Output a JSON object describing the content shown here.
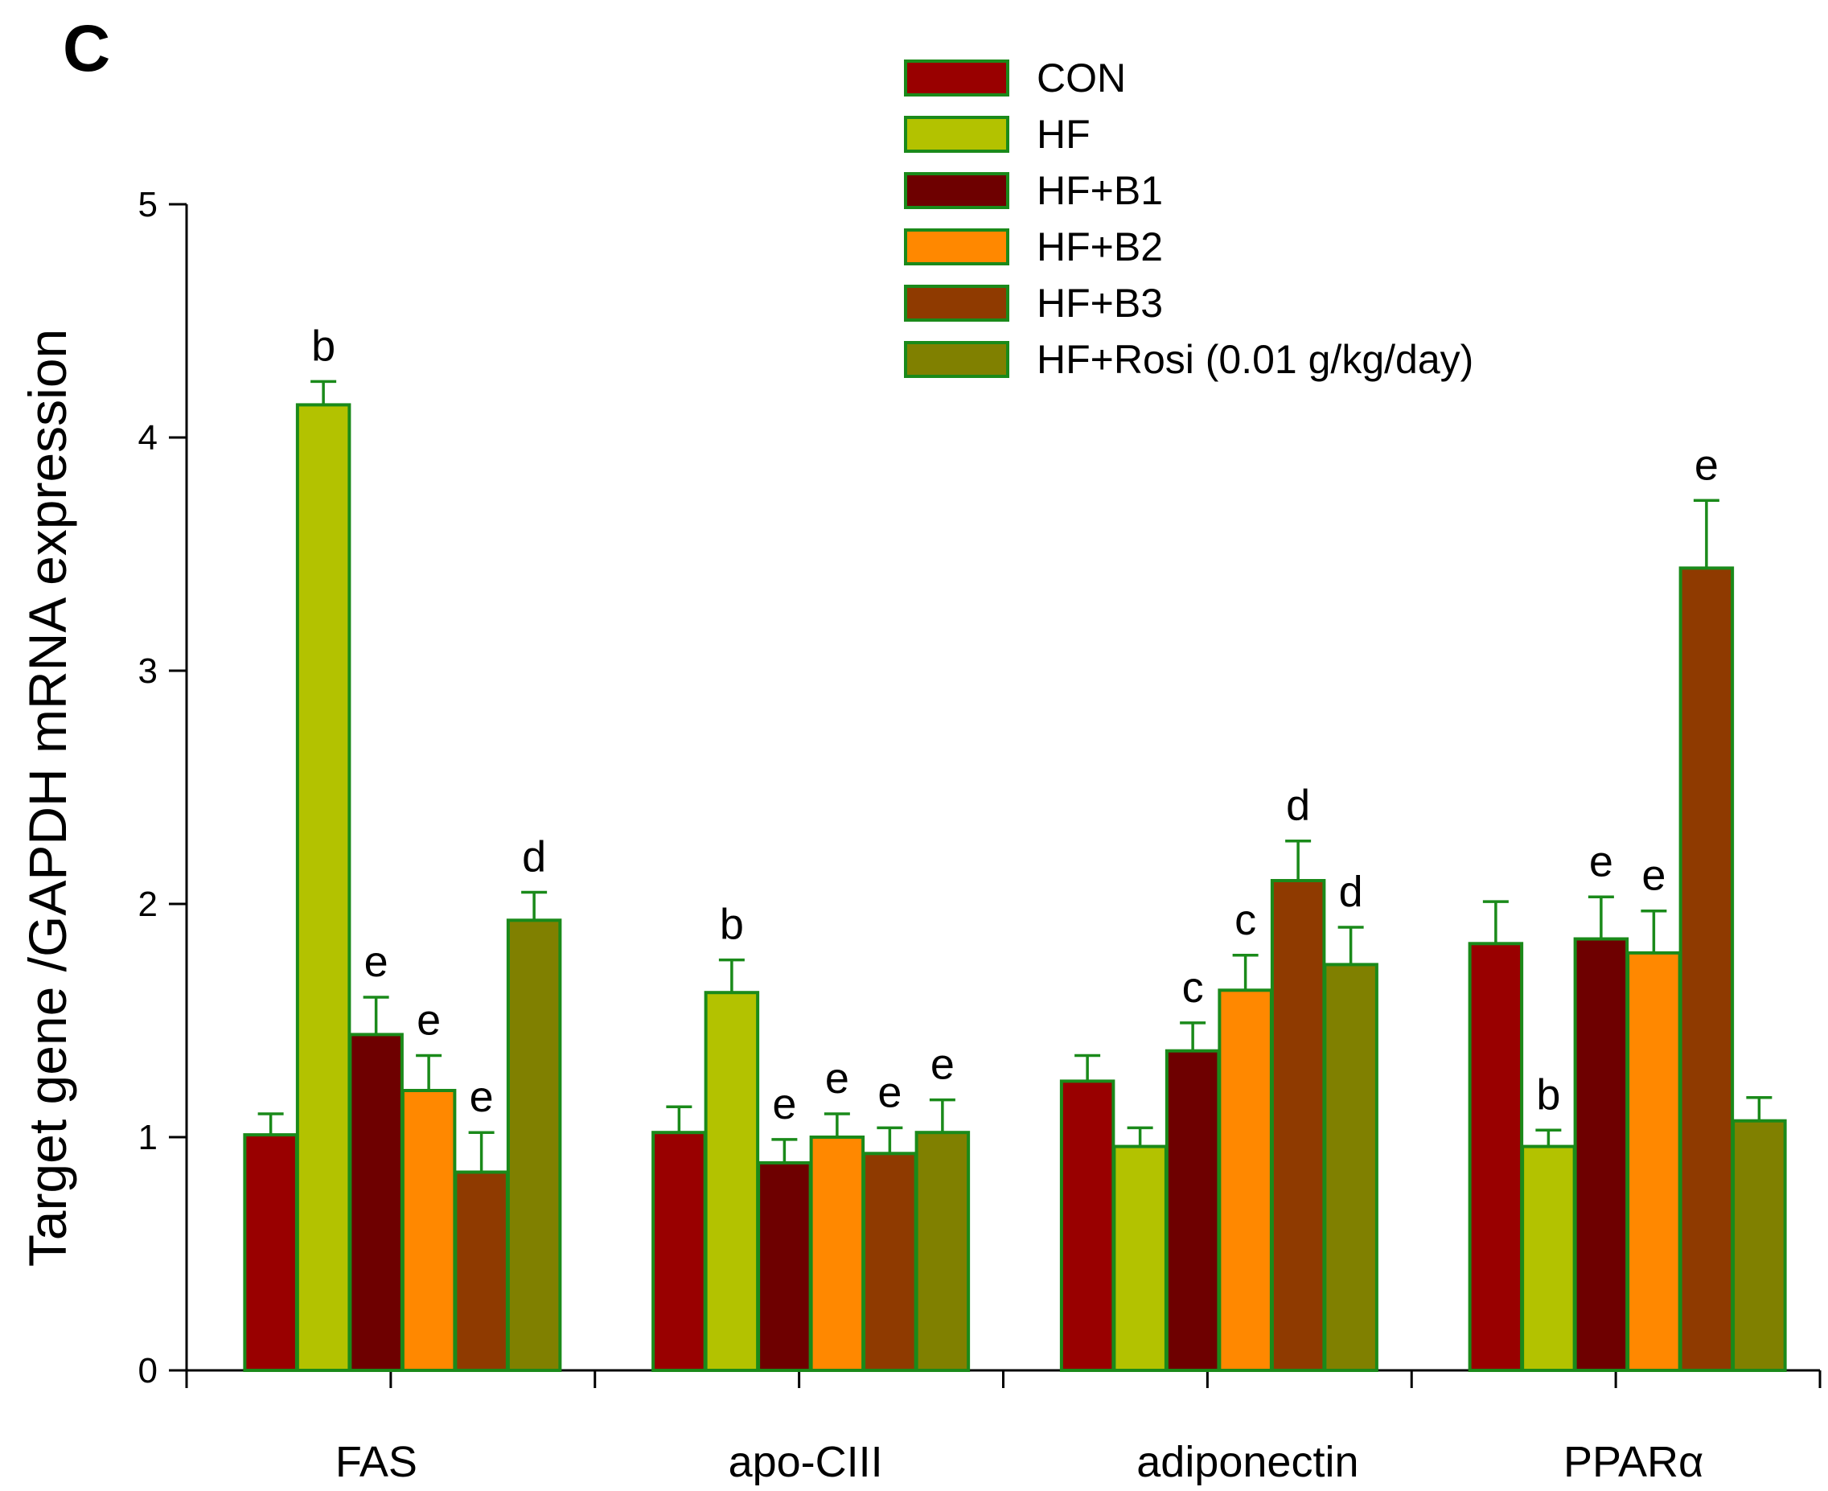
{
  "panel_label": "C",
  "chart_data": {
    "type": "bar",
    "title": "",
    "xlabel": "",
    "ylabel": "Target gene /GAPDH mRNA expression",
    "ylim": [
      0,
      5
    ],
    "yticks": [
      "0",
      "1",
      "2",
      "3",
      "4",
      "5"
    ],
    "categories": [
      "FAS",
      "apo-CIII",
      "adiponectin",
      "PPARα"
    ],
    "legend_position": "top-right",
    "bar_outline_color": "#1a8a1a",
    "series": [
      {
        "name": "CON",
        "color": "#990000",
        "values": [
          1.01,
          1.02,
          1.24,
          1.83
        ],
        "errors": [
          0.09,
          0.11,
          0.11,
          0.18
        ],
        "labels": [
          "",
          "",
          "",
          ""
        ]
      },
      {
        "name": "HF",
        "color": "#b3c200",
        "values": [
          4.14,
          1.62,
          0.96,
          0.96
        ],
        "errors": [
          0.1,
          0.14,
          0.08,
          0.07
        ],
        "labels": [
          "b",
          "b",
          "",
          "b"
        ]
      },
      {
        "name": "HF+B1",
        "color": "#6e0000",
        "values": [
          1.44,
          0.89,
          1.37,
          1.85
        ],
        "errors": [
          0.16,
          0.1,
          0.12,
          0.18
        ],
        "labels": [
          "e",
          "e",
          "c",
          "e"
        ]
      },
      {
        "name": "HF+B2",
        "color": "#ff8800",
        "values": [
          1.2,
          1.0,
          1.63,
          1.79
        ],
        "errors": [
          0.15,
          0.1,
          0.15,
          0.18
        ],
        "labels": [
          "e",
          "e",
          "c",
          "e"
        ]
      },
      {
        "name": "HF+B3",
        "color": "#8f3a00",
        "values": [
          0.85,
          0.93,
          2.1,
          3.44
        ],
        "errors": [
          0.17,
          0.11,
          0.17,
          0.29
        ],
        "labels": [
          "e",
          "e",
          "d",
          "e"
        ]
      },
      {
        "name": "HF+Rosi (0.01 g/kg/day)",
        "color": "#808000",
        "values": [
          1.93,
          1.02,
          1.74,
          1.07
        ],
        "errors": [
          0.12,
          0.14,
          0.16,
          0.1
        ],
        "labels": [
          "d",
          "e",
          "d",
          ""
        ]
      }
    ]
  }
}
